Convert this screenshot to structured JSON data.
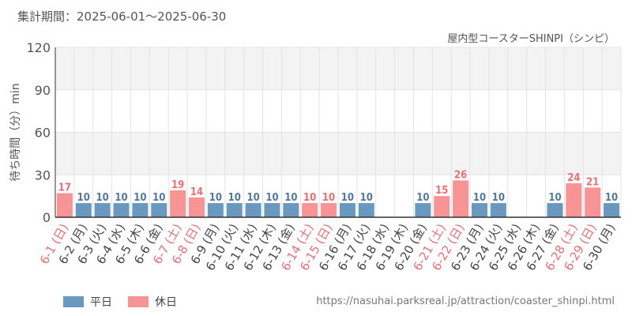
{
  "header": {
    "period": "集計期間：2025-06-01～2025-06-30",
    "chart_title": "屋内型コースターSHINPI（シンピ）"
  },
  "legend": {
    "weekday": "平日",
    "holiday": "休日"
  },
  "source_url": "https://nasuhai.parksreal.jp/attraction/coaster_shinpi.html",
  "colors": {
    "weekday": "#6a99c0",
    "holiday": "#f99495",
    "weekday_text": "#4f79a0",
    "holiday_text": "#f06c70"
  },
  "chart_data": {
    "type": "bar",
    "title": "屋内型コースターSHINPI（シンピ）",
    "xlabel": "",
    "ylabel": "待ち時間（分）min",
    "ylim": [
      0,
      120
    ],
    "yticks": [
      "0",
      "30",
      "60",
      "90",
      "120"
    ],
    "grid": true,
    "legend_position": "bottom-left",
    "categories": [
      "6-1 (日)",
      "6-2 (月)",
      "6-3 (火)",
      "6-4 (水)",
      "6-5 (木)",
      "6-6 (金)",
      "6-7 (土)",
      "6-8 (日)",
      "6-9 (月)",
      "6-10 (火)",
      "6-11 (水)",
      "6-12 (木)",
      "6-13 (金)",
      "6-14 (土)",
      "6-15 (日)",
      "6-16 (月)",
      "6-17 (火)",
      "6-18 (水)",
      "6-19 (木)",
      "6-20 (金)",
      "6-21 (土)",
      "6-22 (日)",
      "6-23 (月)",
      "6-24 (火)",
      "6-25 (水)",
      "6-26 (木)",
      "6-27 (金)",
      "6-28 (土)",
      "6-29 (日)",
      "6-30 (月)"
    ],
    "values": [
      17,
      10,
      10,
      10,
      10,
      10,
      19,
      14,
      10,
      10,
      10,
      10,
      10,
      10,
      10,
      10,
      10,
      null,
      null,
      10,
      15,
      26,
      10,
      10,
      null,
      null,
      10,
      24,
      21,
      10
    ],
    "holiday": [
      true,
      false,
      false,
      false,
      false,
      false,
      true,
      true,
      false,
      false,
      false,
      false,
      false,
      true,
      true,
      false,
      false,
      false,
      false,
      false,
      true,
      true,
      false,
      false,
      false,
      false,
      false,
      true,
      true,
      false
    ]
  }
}
